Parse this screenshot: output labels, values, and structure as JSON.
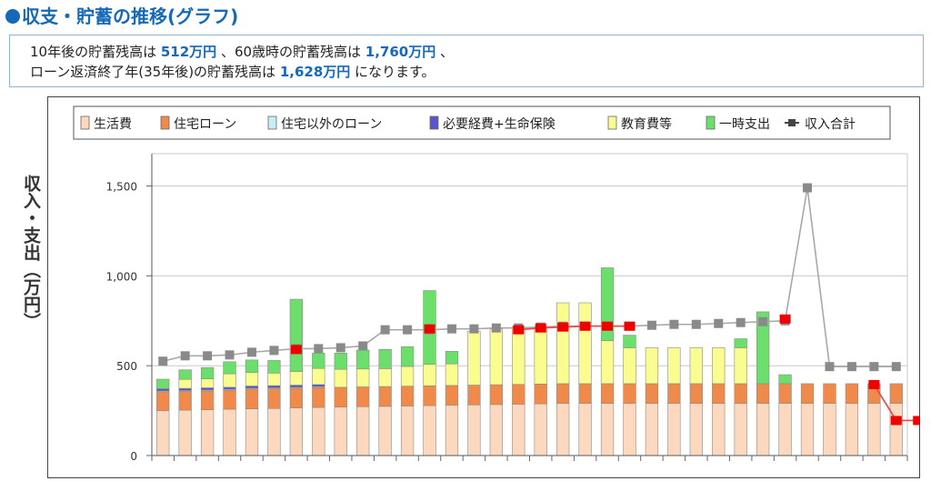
{
  "title": "収支・貯蓄の推移(グラフ)",
  "summary": {
    "line1_pre": "10年後の貯蓄残高は ",
    "line1_v1": "512万円",
    "line1_mid": " 、60歳時の貯蓄残高は ",
    "line1_v2": "1,760万円",
    "line1_post": " 、",
    "line2_pre": "ローン返済終了年(35年後)の貯蓄残高は ",
    "line2_v": "1,628万円",
    "line2_post": " になります。"
  },
  "colors": {
    "living": "#fcd9be",
    "housing_loan": "#f08a4b",
    "other_loan": "#c6eef6",
    "insurance": "#5a55cc",
    "education": "#fbfc8f",
    "onetime": "#6cde6c",
    "income_line": "#a8a8a8",
    "income_marker": "#8a8a8a",
    "savings_line": "#ee4444",
    "savings_marker": "#ee0000",
    "grid": "#c8c8c8",
    "title": "#1668b8"
  },
  "chart_data": {
    "type": "bar",
    "stacked": true,
    "ylabel": "収入・支出（万円）",
    "yticks": [
      "0",
      "500",
      "1,000",
      "1,500"
    ],
    "ylim": [
      0,
      1680
    ],
    "legend": [
      "生活費",
      "住宅ローン",
      "住宅以外のローン",
      "必要経費+生命保険",
      "教育費等",
      "一時支出",
      "収入合計"
    ],
    "legend_position": "top",
    "grid": true,
    "bar_count": 34,
    "series": [
      {
        "name": "生活費",
        "key": "living",
        "values": [
          250,
          252,
          255,
          258,
          260,
          262,
          265,
          268,
          270,
          272,
          274,
          276,
          278,
          280,
          282,
          284,
          286,
          288,
          290,
          290,
          290,
          290,
          290,
          290,
          290,
          290,
          290,
          290,
          290,
          290,
          290,
          290,
          290,
          290
        ]
      },
      {
        "name": "住宅ローン",
        "key": "housing_loan",
        "values": [
          105,
          105,
          105,
          105,
          110,
          110,
          110,
          110,
          110,
          110,
          110,
          110,
          110,
          110,
          110,
          110,
          110,
          110,
          110,
          110,
          110,
          110,
          110,
          110,
          110,
          110,
          110,
          110,
          110,
          110,
          110,
          110,
          110,
          110
        ]
      },
      {
        "name": "住宅以外のローン",
        "key": "other_loan",
        "values": [
          5,
          5,
          5,
          5,
          5,
          5,
          5,
          5,
          0,
          0,
          0,
          0,
          0,
          0,
          0,
          0,
          0,
          0,
          0,
          0,
          0,
          0,
          0,
          0,
          0,
          0,
          0,
          0,
          0,
          0,
          0,
          0,
          0,
          0
        ]
      },
      {
        "name": "必要経費+生命保険",
        "key": "insurance",
        "values": [
          12,
          12,
          12,
          12,
          12,
          12,
          12,
          12,
          0,
          0,
          0,
          0,
          0,
          0,
          0,
          0,
          0,
          0,
          0,
          0,
          0,
          0,
          0,
          0,
          0,
          0,
          0,
          0,
          0,
          0,
          0,
          0,
          0,
          0
        ]
      },
      {
        "name": "教育費等",
        "key": "education",
        "values": [
          0,
          50,
          50,
          75,
          75,
          70,
          75,
          90,
          100,
          100,
          100,
          110,
          120,
          120,
          300,
          310,
          320,
          320,
          450,
          450,
          240,
          200,
          200,
          200,
          200,
          200,
          200,
          0,
          0,
          0,
          0,
          0,
          0,
          0
        ]
      },
      {
        "name": "一時支出",
        "key": "onetime",
        "values": [
          53,
          53,
          63,
          67,
          70,
          70,
          403,
          85,
          90,
          105,
          107,
          110,
          410,
          70,
          0,
          0,
          0,
          0,
          0,
          0,
          405,
          70,
          0,
          0,
          0,
          0,
          50,
          400,
          50,
          0,
          0,
          0,
          0,
          0
        ]
      }
    ],
    "lines": [
      {
        "name": "収入合計",
        "key": "income",
        "values": [
          525,
          555,
          555,
          560,
          575,
          585,
          595,
          595,
          600,
          610,
          700,
          700,
          700,
          705,
          705,
          710,
          710,
          715,
          720,
          720,
          720,
          720,
          725,
          730,
          730,
          735,
          740,
          745,
          750,
          1490,
          495,
          495,
          495,
          495
        ]
      },
      {
        "name": "",
        "key": "savings",
        "from": 6,
        "values": [
          590,
          null,
          null,
          null,
          null,
          null,
          705,
          null,
          null,
          null,
          700,
          710,
          715,
          720,
          720,
          720,
          null,
          null,
          null,
          null,
          null,
          null,
          760,
          null,
          null,
          null,
          395,
          195,
          195
        ]
      }
    ]
  }
}
